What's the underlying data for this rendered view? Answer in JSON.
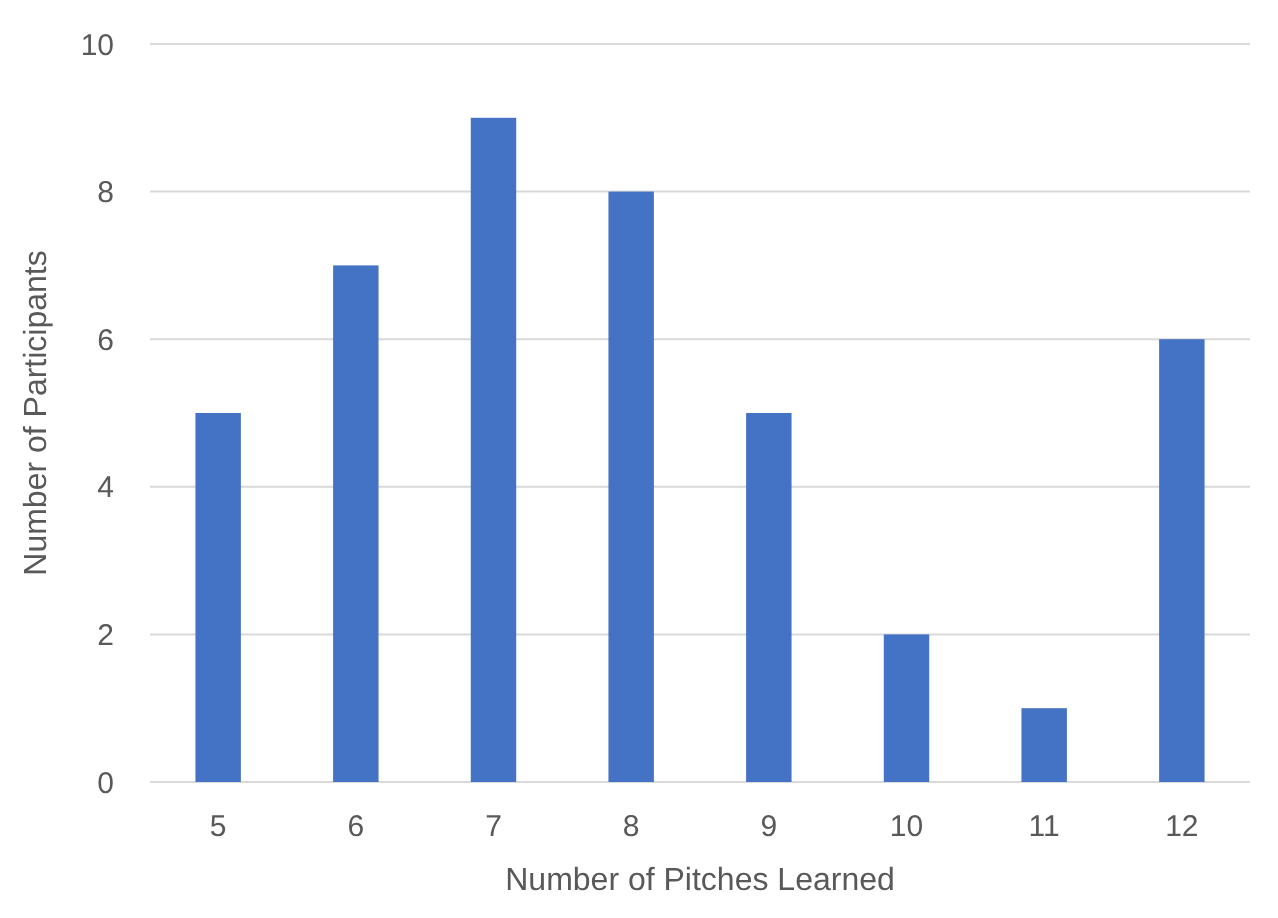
{
  "chart_data": {
    "type": "bar",
    "xlabel": "Number of Pitches Learned",
    "ylabel": "Number of Participants",
    "categories": [
      "5",
      "6",
      "7",
      "8",
      "9",
      "10",
      "11",
      "12"
    ],
    "values": [
      5,
      7,
      9,
      8,
      5,
      2,
      1,
      6
    ],
    "color": "#4472c4",
    "ylim": [
      0,
      10
    ],
    "yticks": [
      0,
      2,
      4,
      6,
      8,
      10
    ],
    "grid": "y"
  }
}
